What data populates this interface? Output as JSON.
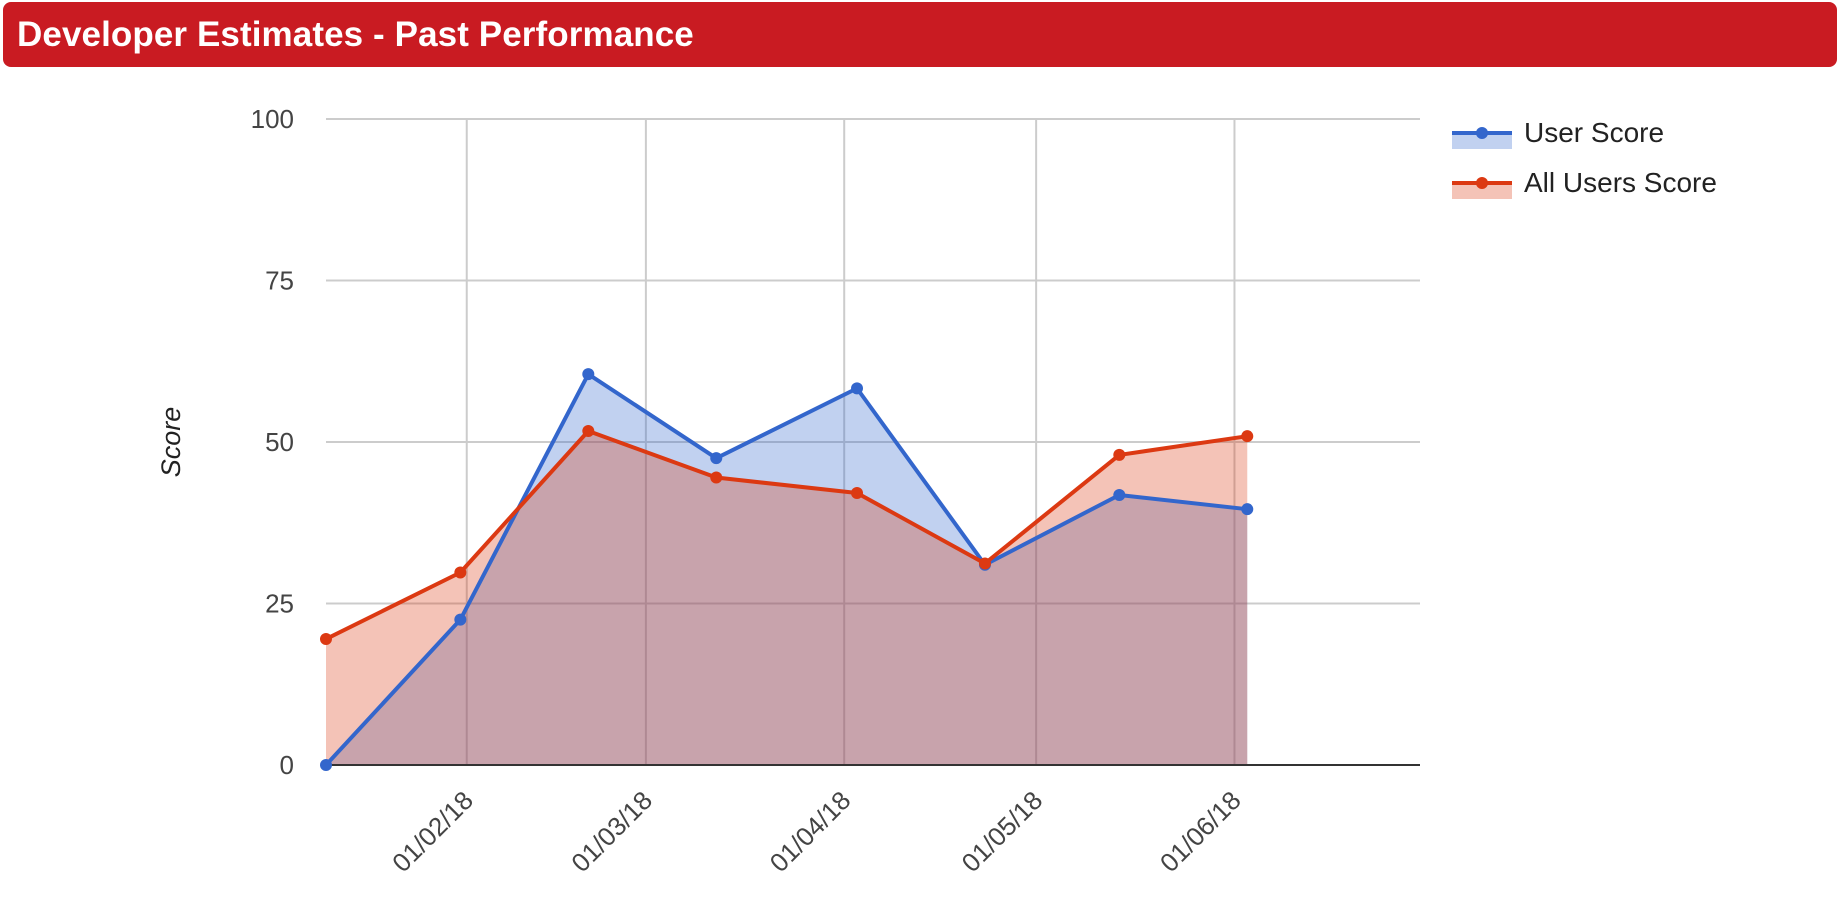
{
  "header": {
    "title": "Developer Estimates - Past Performance",
    "background": "#c91b22"
  },
  "chart_data": {
    "type": "area",
    "title": "",
    "xlabel": "",
    "ylabel": "Score",
    "x_axis": {
      "type": "date",
      "range": [
        "2018-01-10",
        "2018-06-30"
      ],
      "ticks": [
        {
          "date": "2018-02-01",
          "label": "01/02/18"
        },
        {
          "date": "2018-03-01",
          "label": "01/03/18"
        },
        {
          "date": "2018-04-01",
          "label": "01/04/18"
        },
        {
          "date": "2018-05-01",
          "label": "01/05/18"
        },
        {
          "date": "2018-06-01",
          "label": "01/06/18"
        }
      ]
    },
    "y_axis": {
      "range": [
        0,
        100
      ],
      "ticks": [
        0,
        25,
        50,
        75,
        100
      ]
    },
    "grid": true,
    "legend_position": "right",
    "x": [
      "2018-01-10",
      "2018-01-31",
      "2018-02-20",
      "2018-03-12",
      "2018-04-03",
      "2018-04-23",
      "2018-05-14",
      "2018-06-03"
    ],
    "series": [
      {
        "name": "User Score",
        "color": "#3366cc",
        "fill": "#3366cc",
        "values": [
          0,
          22.5,
          60.5,
          47.5,
          58.3,
          31,
          41.8,
          39.6
        ]
      },
      {
        "name": "All Users Score",
        "color": "#dc3912",
        "fill": "#dc3912",
        "values": [
          19.5,
          29.8,
          51.7,
          44.5,
          42.1,
          31.2,
          48,
          50.9
        ]
      }
    ]
  }
}
